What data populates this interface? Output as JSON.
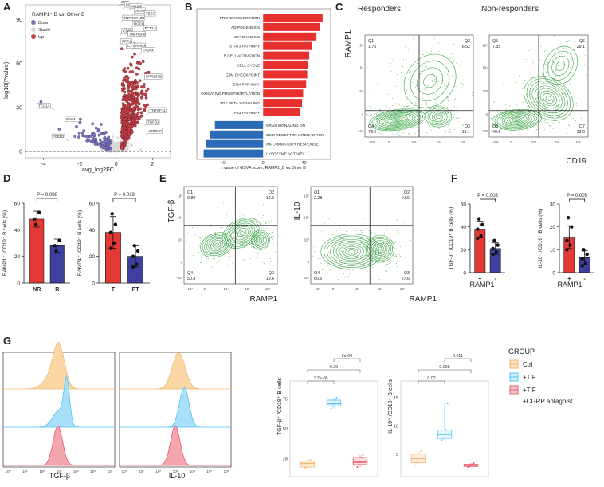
{
  "panel_letters": [
    "A",
    "B",
    "C",
    "D",
    "E",
    "F",
    "G"
  ],
  "chart_data": [
    {
      "id": "A",
      "type": "scatter",
      "title": "RAMP1⁺ B vs. Other B",
      "xlabel": "avg_log2FC",
      "ylabel": "-log10(Pvalue)",
      "xlim": [
        -5,
        3
      ],
      "ylim": [
        0,
        100
      ],
      "xticks": [
        "-4",
        "-2",
        "0",
        "2"
      ],
      "yticks": [
        "0",
        "30",
        "60",
        "90"
      ],
      "legend": [
        "Down",
        "Stable",
        "Up"
      ],
      "colors": {
        "Down": "#7b73b8",
        "Stable": "#d9d9d9",
        "Up": "#c2414b"
      },
      "labeled_genes": [
        {
          "gene": "TCL1A",
          "x": -3.4,
          "y": 28
        },
        {
          "gene": "IGHM",
          "x": -2.0,
          "y": 19
        },
        {
          "gene": "FCER2",
          "x": -2.6,
          "y": 7
        },
        {
          "gene": "IER2",
          "x": 0.1,
          "y": 99
        },
        {
          "gene": "COTL1",
          "x": 0.35,
          "y": 97
        },
        {
          "gene": "NOSIP",
          "x": 0.65,
          "y": 96
        },
        {
          "gene": "ACP5",
          "x": 0.9,
          "y": 93
        },
        {
          "gene": "TESC",
          "x": 1.45,
          "y": 91
        },
        {
          "gene": "TNFRSF13B",
          "x": 0.25,
          "y": 88
        },
        {
          "gene": "RGCC",
          "x": 0.8,
          "y": 84
        },
        {
          "gene": "FCRL4",
          "x": 1.4,
          "y": 81
        },
        {
          "gene": "CD69",
          "x": 0.2,
          "y": 79
        },
        {
          "gene": "TNFRSF8",
          "x": 0.55,
          "y": 77
        },
        {
          "gene": "PPP1",
          "x": 0.15,
          "y": 72
        },
        {
          "gene": "CYTOR",
          "x": 0.45,
          "y": 69
        },
        {
          "gene": "HOPX",
          "x": 0.9,
          "y": 69
        },
        {
          "gene": "ITGAX",
          "x": 1.3,
          "y": 66
        },
        {
          "gene": "GPR137B",
          "x": 1.45,
          "y": 48
        },
        {
          "gene": "TNFSF11",
          "x": 1.7,
          "y": 25
        },
        {
          "gene": "TGFB1",
          "x": 1.55,
          "y": 17
        },
        {
          "gene": "ATP6V0",
          "x": 1.6,
          "y": 11
        }
      ]
    },
    {
      "id": "B",
      "type": "bar",
      "xlabel": "t value of GSVA score, RAMP1_B vs.Other B",
      "xticks": [
        "-40",
        "0",
        "40"
      ],
      "xlim": [
        -60,
        62
      ],
      "categories": [
        "PROTEIN SECRETION",
        "ADIPOGENESIS",
        "CYTOKINESIS",
        "STAT3 PATHWAY",
        "B CELL ACTIVATION",
        "CELL CYCLE",
        "G2M CHECKPOINT",
        "ERK PATHWAY",
        "OXIDATIVE PHOSPHORYLATION",
        "TGF BETA SIGNALING",
        "P53 PATHWAY",
        "KRAS SIGNALING DN",
        "ECM RECEPTOR INTERACTION",
        "INFLAMMATORY RESPONSE",
        "LYSOZYME ACTIVITY"
      ],
      "values": [
        58,
        55,
        52,
        48,
        45,
        44,
        43,
        42,
        39,
        38,
        36,
        -47,
        -52,
        -56,
        -58
      ],
      "colors": {
        "positive": "#e8302f",
        "negative": "#2b6bb5"
      }
    },
    {
      "id": "C",
      "type": "scatter",
      "channel_y": "RAMP1",
      "channel_x": "CD19",
      "plots": [
        {
          "title": "Responders",
          "quadrants": [
            {
              "name": "Q1",
              "pct": "1.75"
            },
            {
              "name": "Q2",
              "pct": "6.52"
            },
            {
              "name": "Q4",
              "pct": "78.6"
            },
            {
              "name": "Q3",
              "pct": "13.1"
            }
          ]
        },
        {
          "title": "Non-responders",
          "quadrants": [
            {
              "name": "Q5",
              "pct": "7.35"
            },
            {
              "name": "Q6",
              "pct": "29.1"
            },
            {
              "name": "Q8",
              "pct": "40.6"
            },
            {
              "name": "Q7",
              "pct": "23.0"
            }
          ]
        }
      ],
      "ticks": [
        "-10³",
        "0",
        "10³",
        "10⁴",
        "10⁵"
      ]
    },
    {
      "id": "D1",
      "type": "bar",
      "ylabel": "RAMP1⁺ /CD19⁺ B cells (%)",
      "categories": [
        "NR",
        "R"
      ],
      "values": [
        48,
        28
      ],
      "errors": [
        6,
        5
      ],
      "ylim": [
        0,
        60
      ],
      "yticks": [
        "0",
        "20",
        "40",
        "60"
      ],
      "p_value": "P = 0.008",
      "colors": [
        "#e53935",
        "#3f3f9f"
      ],
      "points": [
        [
          44,
          53,
          48
        ],
        [
          24,
          32,
          28
        ]
      ]
    },
    {
      "id": "D2",
      "type": "bar",
      "ylabel": "RAMP1⁺ /CD19⁺ B cells (%)",
      "categories": [
        "T",
        "PT"
      ],
      "values": [
        38,
        20
      ],
      "errors": [
        12,
        8
      ],
      "ylim": [
        0,
        60
      ],
      "yticks": [
        "0",
        "20",
        "40",
        "60"
      ],
      "p_value": "P = 0.019",
      "colors": [
        "#e53935",
        "#3f3f9f"
      ],
      "points": [
        [
          52,
          44,
          38,
          30,
          26
        ],
        [
          28,
          24,
          20,
          14,
          12
        ]
      ]
    },
    {
      "id": "E",
      "type": "scatter",
      "channel_x": "RAMP1",
      "plots": [
        {
          "channel_y": "TGF-β",
          "quadrants": [
            {
              "name": "Q1",
              "pct": "9.80"
            },
            {
              "name": "Q2",
              "pct": "19.8"
            },
            {
              "name": "Q4",
              "pct": "50.8"
            },
            {
              "name": "Q3",
              "pct": "19.6"
            }
          ]
        },
        {
          "channel_y": "IL-10",
          "quadrants": [
            {
              "name": "Q1",
              "pct": "2.28"
            },
            {
              "name": "Q2",
              "pct": "9.56"
            },
            {
              "name": "Q4",
              "pct": "60.5"
            },
            {
              "name": "Q3",
              "pct": "27.6"
            }
          ]
        }
      ],
      "ticks": [
        "-10³",
        "0",
        "10³",
        "10⁴",
        "10⁵"
      ]
    },
    {
      "id": "F1",
      "type": "bar",
      "ylabel": "TGF-β⁺ /CD19⁺ B cells (%)",
      "xlabel": "RAMP1",
      "categories": [
        "+",
        "-"
      ],
      "values": [
        38,
        21
      ],
      "errors": [
        7,
        5
      ],
      "ylim": [
        0,
        60
      ],
      "yticks": [
        "0",
        "20",
        "40",
        "60"
      ],
      "p_value": "P = 0.003",
      "colors": [
        "#e53935",
        "#3f3f9f"
      ],
      "points": [
        [
          47,
          42,
          38,
          32,
          30
        ],
        [
          28,
          24,
          21,
          18,
          16
        ]
      ]
    },
    {
      "id": "F2",
      "type": "bar",
      "ylabel": "IL-10⁺ /CD19⁺ B cells (%)",
      "xlabel": "RAMP1",
      "categories": [
        "+",
        "-"
      ],
      "values": [
        15.5,
        6.5
      ],
      "errors": [
        5,
        3
      ],
      "ylim": [
        0,
        30
      ],
      "yticks": [
        "0",
        "10",
        "20",
        "30"
      ],
      "p_value": "P = 0.005",
      "colors": [
        "#e53935",
        "#3f3f9f"
      ],
      "points": [
        [
          24,
          20,
          14,
          12,
          10
        ],
        [
          10,
          8,
          6,
          4,
          3
        ]
      ]
    },
    {
      "id": "G_hist",
      "type": "area",
      "plots": [
        {
          "xlabel": "TGF-β"
        },
        {
          "xlabel": "IL-10"
        }
      ],
      "series": [
        "Ctrl",
        "+TIF",
        "+TIF +CGRP antagoist"
      ],
      "colors": [
        "#f5b773",
        "#4fc3f7",
        "#e35d6a"
      ],
      "xticks": [
        "10⁰",
        "10¹",
        "10²",
        "10³",
        "10⁴",
        "10⁵",
        "10⁶"
      ]
    },
    {
      "id": "G_box1",
      "type": "box",
      "ylabel": "TGF-β⁺ /CD19⁺ B cells",
      "yticks": [
        "25",
        "50",
        "75"
      ],
      "ylim": [
        10,
        90
      ],
      "groups": [
        {
          "name": "Ctrl",
          "q1": 18,
          "median": 21,
          "q3": 23,
          "min": 17,
          "max": 24
        },
        {
          "name": "+TIF",
          "q1": 69,
          "median": 71,
          "q3": 74,
          "min": 67,
          "max": 76
        },
        {
          "name": "+TIF +CGRP antagoist",
          "q1": 20,
          "median": 22,
          "q3": 26,
          "min": 18,
          "max": 28
        }
      ],
      "comparisons": [
        {
          "pair": [
            "Ctrl",
            "+TIF"
          ],
          "p": "1.2e-06"
        },
        {
          "pair": [
            "Ctrl",
            "+TIF +CGRP antagoist"
          ],
          "p": "0.29"
        },
        {
          "pair": [
            "+TIF",
            "+TIF +CGRP antagoist"
          ],
          "p": "2e-06"
        }
      ]
    },
    {
      "id": "G_box2",
      "type": "box",
      "ylabel": "IL-10⁺ /CD19⁺ B cells",
      "yticks": [
        "5",
        "10",
        "15"
      ],
      "ylim": [
        1,
        18
      ],
      "groups": [
        {
          "name": "Ctrl",
          "q1": 3.5,
          "median": 4.2,
          "q3": 5,
          "min": 3,
          "max": 5.5
        },
        {
          "name": "+TIF",
          "q1": 7.8,
          "median": 8.5,
          "q3": 9.3,
          "min": 7.5,
          "max": 14
        },
        {
          "name": "+TIF +CGRP antagoist",
          "q1": 2.8,
          "median": 3,
          "q3": 3.2,
          "min": 2.7,
          "max": 3.4
        }
      ],
      "comparisons": [
        {
          "pair": [
            "Ctrl",
            "+TIF"
          ],
          "p": "0.02"
        },
        {
          "pair": [
            "Ctrl",
            "+TIF +CGRP antagoist"
          ],
          "p": "0.098"
        },
        {
          "pair": [
            "+TIF",
            "+TIF +CGRP antagoist"
          ],
          "p": "0.011"
        }
      ]
    }
  ],
  "legend_g": {
    "title": "GROUP",
    "items": [
      {
        "label": "Ctrl",
        "color": "#f5b773"
      },
      {
        "label": "+TIF",
        "color": "#4fc3f7"
      },
      {
        "label": "+TIF",
        "color": "#e35d6a"
      }
    ],
    "extra_line": "+CGRP antagoist"
  }
}
